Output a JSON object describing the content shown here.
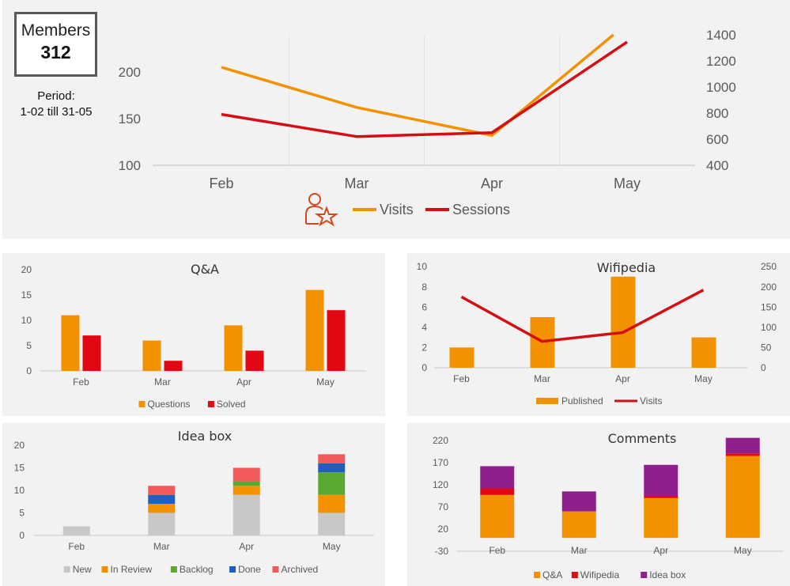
{
  "summary": {
    "members_label": "Members",
    "members_count": "312",
    "period_label": "Period:",
    "period_range": "1-02 till 31-05"
  },
  "chart_data": [
    {
      "id": "traffic",
      "type": "line",
      "title": "",
      "categories": [
        "Feb",
        "Mar",
        "Apr",
        "May"
      ],
      "y_left": {
        "ticks": [
          100,
          150,
          200
        ],
        "range": [
          100,
          250
        ]
      },
      "y_right": {
        "ticks": [
          400,
          600,
          800,
          1000,
          1200,
          1400
        ],
        "range": [
          400,
          1400
        ]
      },
      "grid": false,
      "legend_position": "bottom",
      "legend_icon": "user-star-icon",
      "series": [
        {
          "name": "Visits",
          "axis": "left",
          "color": "#f39200",
          "values": [
            205,
            162,
            132,
            252
          ]
        },
        {
          "name": "Sessions",
          "axis": "right",
          "color": "#d40f14",
          "values": [
            790,
            620,
            650,
            1345
          ]
        }
      ]
    },
    {
      "id": "qa",
      "type": "bar",
      "title": "Q&A",
      "categories": [
        "Feb",
        "Mar",
        "Apr",
        "May"
      ],
      "y": {
        "ticks": [
          0,
          5,
          10,
          15,
          20
        ],
        "range": [
          0,
          20
        ]
      },
      "legend_position": "bottom",
      "series": [
        {
          "name": "Questions",
          "color": "#f39200",
          "values": [
            11,
            6,
            9,
            16
          ]
        },
        {
          "name": "Solved",
          "color": "#e30613",
          "values": [
            7,
            2,
            4,
            12
          ]
        }
      ]
    },
    {
      "id": "wifipedia",
      "type": "bar",
      "title": "Wifipedia",
      "categories": [
        "Feb",
        "Mar",
        "Apr",
        "May"
      ],
      "y_left": {
        "ticks": [
          0,
          2,
          4,
          6,
          8,
          10
        ],
        "range": [
          0,
          10
        ]
      },
      "y_right": {
        "ticks": [
          0,
          50,
          100,
          150,
          200,
          250
        ],
        "range": [
          0,
          250
        ]
      },
      "legend_position": "bottom",
      "series": [
        {
          "name": "Published",
          "kind": "bar",
          "axis": "left",
          "color": "#f39200",
          "values": [
            2,
            5,
            9,
            3
          ]
        },
        {
          "name": "Visits",
          "kind": "line",
          "axis": "right",
          "color": "#d40f14",
          "values": [
            175,
            65,
            87,
            192
          ]
        }
      ]
    },
    {
      "id": "ideabox",
      "type": "bar",
      "stacked": true,
      "title": "Idea box",
      "categories": [
        "Feb",
        "Mar",
        "Apr",
        "May"
      ],
      "y": {
        "ticks": [
          0,
          5,
          10,
          15,
          20
        ],
        "range": [
          0,
          20
        ]
      },
      "legend_position": "bottom",
      "series": [
        {
          "name": "New",
          "color": "#c8c8c8",
          "values": [
            2,
            5,
            9,
            5
          ]
        },
        {
          "name": "In Review",
          "color": "#f39200",
          "values": [
            0,
            2,
            2,
            4
          ]
        },
        {
          "name": "Backlog",
          "color": "#5aa832",
          "values": [
            0,
            0,
            1,
            5
          ]
        },
        {
          "name": "Done",
          "color": "#1f5fbf",
          "values": [
            0,
            2,
            0,
            2
          ]
        },
        {
          "name": "Archived",
          "color": "#f25a5a",
          "values": [
            0,
            2,
            3,
            2
          ]
        }
      ]
    },
    {
      "id": "comments",
      "type": "bar",
      "stacked": true,
      "title": "Comments",
      "categories": [
        "Feb",
        "Mar",
        "Apr",
        "May"
      ],
      "y": {
        "ticks": [
          -30,
          20,
          70,
          120,
          170,
          220
        ],
        "range": [
          -30,
          220
        ]
      },
      "legend_position": "bottom",
      "series": [
        {
          "name": "Q&A",
          "color": "#f39200",
          "values": [
            97,
            60,
            90,
            185
          ]
        },
        {
          "name": "Wifipedia",
          "color": "#e30613",
          "values": [
            15,
            0,
            5,
            6
          ]
        },
        {
          "name": "Idea box",
          "color": "#8e1f8c",
          "values": [
            50,
            45,
            70,
            35
          ]
        }
      ]
    }
  ]
}
